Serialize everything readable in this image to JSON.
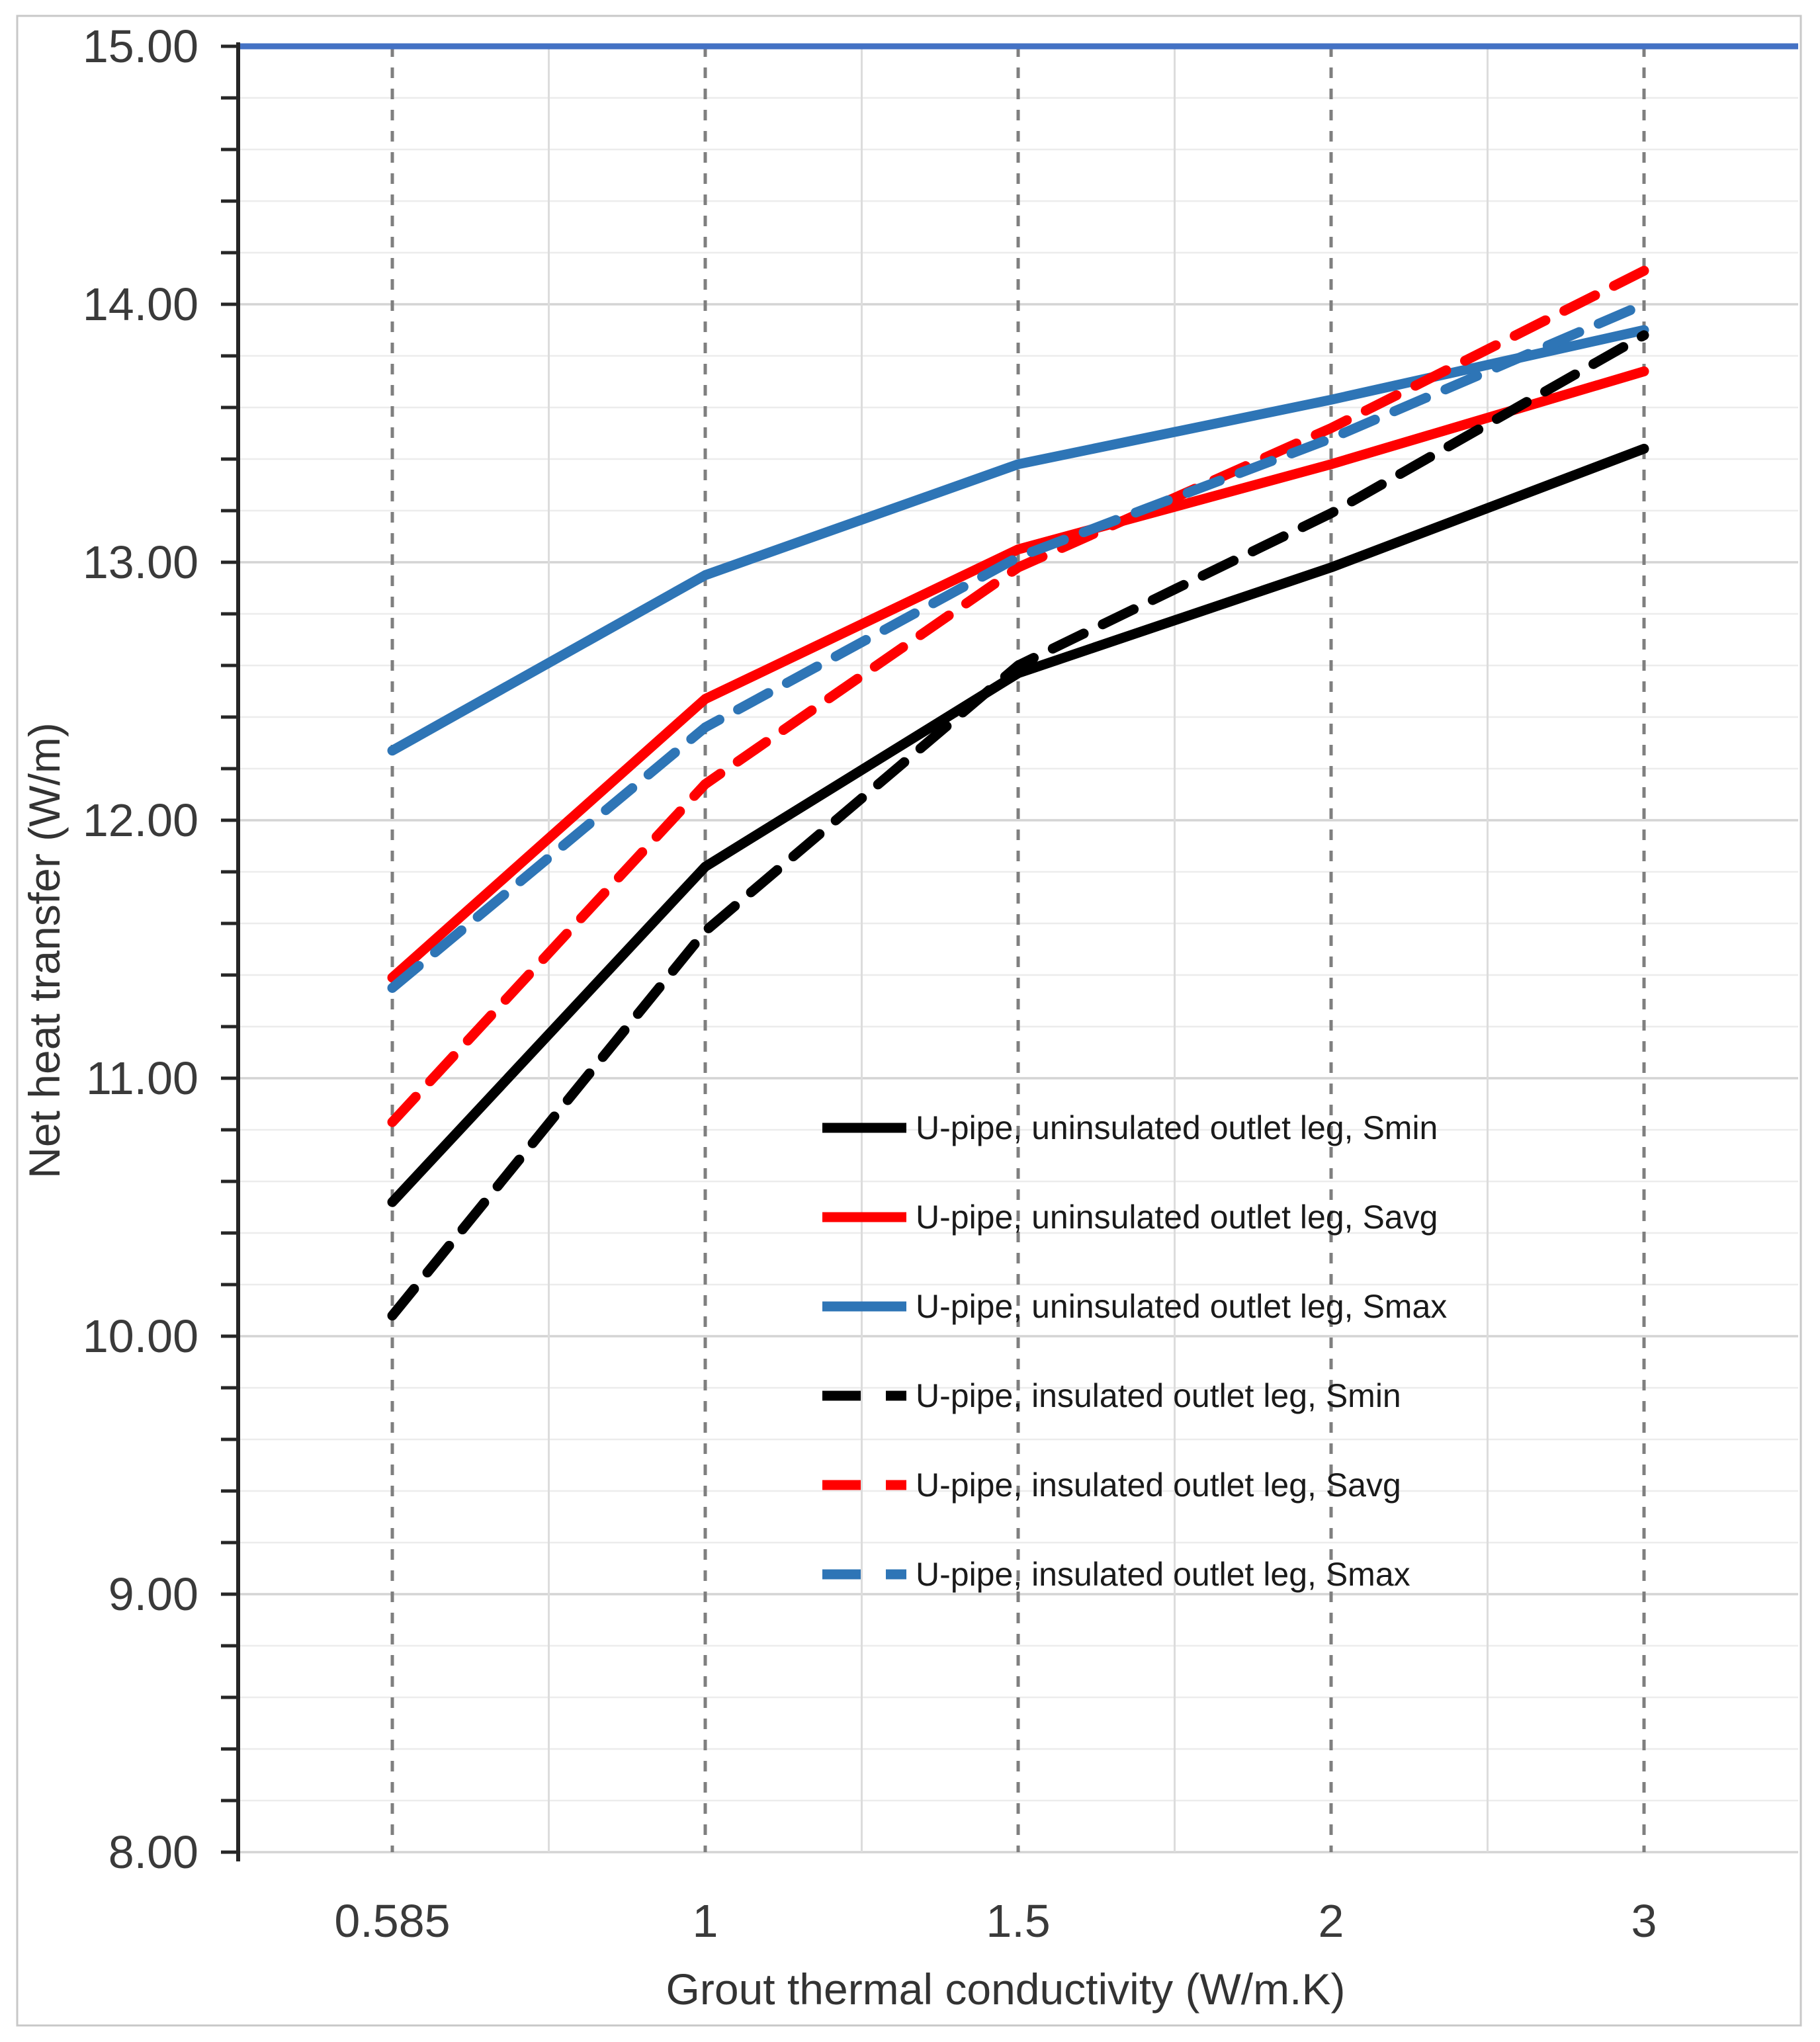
{
  "figure": {
    "border_color": "#c8c8c8",
    "background": "#ffffff"
  },
  "chart_data": {
    "type": "line",
    "title": "",
    "xlabel": "Grout thermal conductivity (W/m.K)",
    "ylabel": "Net heat transfer (W/m)",
    "x_categories": [
      "0.585",
      "1",
      "1.5",
      "2",
      "3"
    ],
    "x_values": [
      0.585,
      1,
      1.5,
      2,
      3
    ],
    "x_spacing": "categorical-even",
    "ylim": [
      8,
      15
    ],
    "y_major_step": 1,
    "y_minor_step": 0.2,
    "y_tick_labels": [
      "8.00",
      "9.00",
      "10.00",
      "11.00",
      "12.00",
      "13.00",
      "14.00",
      "15.00"
    ],
    "grid": {
      "horizontal_minor": true,
      "vertical_category_boundaries": true,
      "drop_lines_at_categories": true,
      "minor_color": "#ececec",
      "major_color": "#d4d4d4",
      "boundary_color": "#dcdcdc",
      "drop_line_color": "#7f7f7f"
    },
    "reference_line": {
      "value": 15.0,
      "color": "#4472c4",
      "style": "solid"
    },
    "legend_position": "inside-middle-right",
    "series": [
      {
        "name": "U-pipe, uninsulated outlet leg, Smin",
        "color": "#000000",
        "dash": "solid",
        "values": [
          10.52,
          11.82,
          12.57,
          12.98,
          13.44
        ]
      },
      {
        "name": "U-pipe, uninsulated outlet leg, Savg",
        "color": "#ff0000",
        "dash": "solid",
        "values": [
          11.39,
          12.47,
          13.05,
          13.38,
          13.74
        ]
      },
      {
        "name": "U-pipe, uninsulated outlet leg, Smax",
        "color": "#2e75b6",
        "dash": "solid",
        "values": [
          12.27,
          12.95,
          13.38,
          13.63,
          13.9
        ]
      },
      {
        "name": "U-pipe, insulated outlet leg, Smin",
        "color": "#000000",
        "dash": "dashed",
        "values": [
          10.08,
          11.57,
          12.6,
          13.19,
          13.88
        ]
      },
      {
        "name": "U-pipe, insulated outlet leg, Savg",
        "color": "#ff0000",
        "dash": "dashed",
        "values": [
          10.83,
          12.14,
          12.98,
          13.52,
          14.13
        ]
      },
      {
        "name": "U-pipe, insulated outlet leg, Smax",
        "color": "#2e75b6",
        "dash": "dashed",
        "values": [
          11.35,
          12.36,
          13.02,
          13.48,
          14.0
        ]
      }
    ]
  }
}
